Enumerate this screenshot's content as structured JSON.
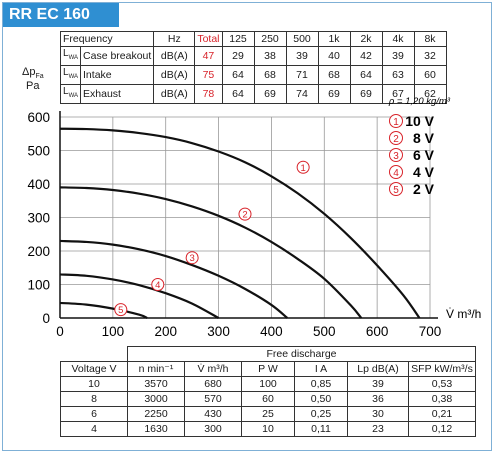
{
  "header": {
    "title": "RR EC 160"
  },
  "sound_table": {
    "headers": [
      "Frequency",
      "",
      "Hz",
      "Total",
      "125",
      "250",
      "500",
      "1k",
      "2k",
      "4k",
      "8k"
    ],
    "rows": [
      {
        "sym": "L",
        "sub": "WA",
        "name": "Case breakout",
        "unit": "dB(A)",
        "total": "47",
        "values": [
          "29",
          "38",
          "39",
          "40",
          "42",
          "39",
          "32"
        ]
      },
      {
        "sym": "L",
        "sub": "WA",
        "name": "Intake",
        "unit": "dB(A)",
        "total": "75",
        "values": [
          "64",
          "68",
          "71",
          "68",
          "64",
          "63",
          "60"
        ]
      },
      {
        "sym": "L",
        "sub": "WA",
        "name": "Exhaust",
        "unit": "dB(A)",
        "total": "78",
        "values": [
          "64",
          "69",
          "74",
          "69",
          "69",
          "67",
          "62"
        ]
      }
    ]
  },
  "y_axis_label": {
    "delta_p": "Δp",
    "sub": "Fa",
    "unit": "Pa"
  },
  "density_note": "ρ = 1,20 kg/m³",
  "colors": {
    "accent": "#2f8fd2",
    "red": "#d8232a"
  },
  "chart_data": {
    "type": "line",
    "xlabel": "V̇ m³/h",
    "ylabel": "ΔpFa Pa",
    "xlim": [
      0,
      700
    ],
    "ylim": [
      0,
      600
    ],
    "x_ticks": [
      0,
      100,
      200,
      300,
      400,
      500,
      600,
      700
    ],
    "y_ticks": [
      0,
      100,
      200,
      300,
      400,
      500,
      600
    ],
    "grid": true,
    "legend_position": "top-right",
    "series": [
      {
        "name": "10 V",
        "marker": "1",
        "marker_at": [
          460,
          450
        ],
        "points": [
          [
            0,
            565
          ],
          [
            50,
            564
          ],
          [
            100,
            560
          ],
          [
            150,
            552
          ],
          [
            200,
            540
          ],
          [
            250,
            522
          ],
          [
            300,
            497
          ],
          [
            350,
            465
          ],
          [
            400,
            423
          ],
          [
            450,
            372
          ],
          [
            500,
            311
          ],
          [
            550,
            239
          ],
          [
            600,
            157
          ],
          [
            650,
            67
          ],
          [
            680,
            0
          ]
        ]
      },
      {
        "name": "8 V",
        "marker": "2",
        "marker_at": [
          350,
          310
        ],
        "points": [
          [
            0,
            390
          ],
          [
            50,
            388
          ],
          [
            100,
            382
          ],
          [
            150,
            371
          ],
          [
            200,
            355
          ],
          [
            250,
            333
          ],
          [
            300,
            305
          ],
          [
            350,
            270
          ],
          [
            400,
            227
          ],
          [
            450,
            176
          ],
          [
            500,
            117
          ],
          [
            550,
            38
          ],
          [
            570,
            0
          ]
        ]
      },
      {
        "name": "6 V",
        "marker": "3",
        "marker_at": [
          250,
          180
        ],
        "points": [
          [
            0,
            230
          ],
          [
            50,
            227
          ],
          [
            100,
            219
          ],
          [
            150,
            205
          ],
          [
            200,
            185
          ],
          [
            250,
            158
          ],
          [
            300,
            126
          ],
          [
            350,
            87
          ],
          [
            400,
            39
          ],
          [
            430,
            0
          ]
        ]
      },
      {
        "name": "4 V",
        "marker": "4",
        "marker_at": [
          185,
          100
        ],
        "points": [
          [
            0,
            130
          ],
          [
            50,
            126
          ],
          [
            100,
            115
          ],
          [
            150,
            98
          ],
          [
            200,
            74
          ],
          [
            250,
            43
          ],
          [
            300,
            0
          ]
        ]
      },
      {
        "name": "2 V",
        "marker": "5",
        "marker_at": [
          115,
          25
        ],
        "points": [
          [
            0,
            45
          ],
          [
            50,
            40
          ],
          [
            100,
            28
          ],
          [
            150,
            10
          ],
          [
            165,
            0
          ]
        ]
      }
    ]
  },
  "discharge_table": {
    "group_header": "Free discharge",
    "headers": [
      {
        "label": "Voltage",
        "unit": "V"
      },
      {
        "label": "n",
        "unit": "min⁻¹"
      },
      {
        "label": "V̇",
        "unit": "m³/h"
      },
      {
        "label": "P",
        "unit": "W"
      },
      {
        "label": "I",
        "unit": "A"
      },
      {
        "label": "Lp",
        "unit": "dB(A)"
      },
      {
        "label": "SFP",
        "unit": "kW/m³/s"
      }
    ],
    "rows": [
      [
        "10",
        "3570",
        "680",
        "100",
        "0,85",
        "39",
        "0,53"
      ],
      [
        "8",
        "3000",
        "570",
        "60",
        "0,50",
        "36",
        "0,38"
      ],
      [
        "6",
        "2250",
        "430",
        "25",
        "0,25",
        "30",
        "0,21"
      ],
      [
        "4",
        "1630",
        "300",
        "10",
        "0,11",
        "23",
        "0,12"
      ]
    ]
  }
}
